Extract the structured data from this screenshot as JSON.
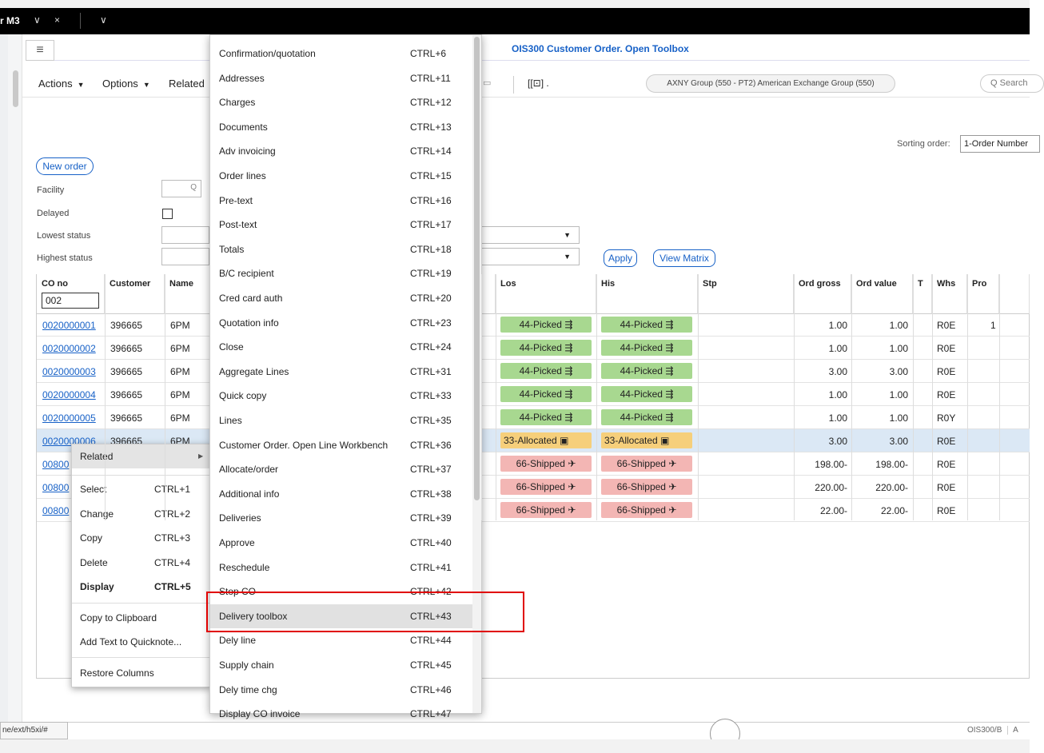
{
  "tab": {
    "title": "r M3",
    "chevron": "∨",
    "close": "×",
    "menu_chevron": "∨"
  },
  "header": {
    "page_title": "OIS300 Customer Order. Open Toolbox",
    "menu_icon": "≡"
  },
  "toolbar": {
    "actions": "Actions",
    "options": "Options",
    "related": "Related",
    "shortcut_glyph": "[[⊡] .",
    "group_chip": "AXNY Group (550 - PT2) American Exchange Group (550)",
    "search_placeholder": "Q  Search"
  },
  "sorting": {
    "label": "Sorting order:",
    "value": "1-Order Number"
  },
  "filters": {
    "new_order": "New order",
    "facility": "Facility",
    "delayed": "Delayed",
    "lowest_status": "Lowest status",
    "highest_status": "Highest status",
    "apply": "Apply",
    "view_matrix": "View Matrix",
    "dropdown_caret": "▼"
  },
  "table": {
    "headers": {
      "co_no": "CO no",
      "customer": "Customer",
      "name": "Name",
      "los": "Los",
      "his": "His",
      "stp": "Stp",
      "ord_gross": "Ord gross",
      "ord_value": "Ord value",
      "t": "T",
      "whs": "Whs",
      "pro": "Pro"
    },
    "co_filter": "002",
    "rows": [
      {
        "co": "0020000001",
        "customer": "396665",
        "name": "6PM",
        "los": "44-Picked",
        "his": "44-Picked",
        "gross": "1.00",
        "value": "1.00",
        "whs": "R0E",
        "pro": "1",
        "status": "green"
      },
      {
        "co": "0020000002",
        "customer": "396665",
        "name": "6PM",
        "los": "44-Picked",
        "his": "44-Picked",
        "gross": "1.00",
        "value": "1.00",
        "whs": "R0E",
        "pro": "",
        "status": "green"
      },
      {
        "co": "0020000003",
        "customer": "396665",
        "name": "6PM",
        "los": "44-Picked",
        "his": "44-Picked",
        "gross": "3.00",
        "value": "3.00",
        "whs": "R0E",
        "pro": "",
        "status": "green"
      },
      {
        "co": "0020000004",
        "customer": "396665",
        "name": "6PM",
        "los": "44-Picked",
        "his": "44-Picked",
        "gross": "1.00",
        "value": "1.00",
        "whs": "R0E",
        "pro": "",
        "status": "green"
      },
      {
        "co": "0020000005",
        "customer": "396665",
        "name": "6PM",
        "los": "44-Picked",
        "his": "44-Picked",
        "gross": "1.00",
        "value": "1.00",
        "whs": "R0Y",
        "pro": "",
        "status": "green"
      },
      {
        "co": "0020000006",
        "customer": "396665",
        "name": "6PM",
        "los": "33-Allocated",
        "his": "33-Allocated",
        "gross": "3.00",
        "value": "3.00",
        "whs": "R0E",
        "pro": "",
        "status": "amber"
      },
      {
        "co": "00800",
        "customer": "",
        "name": "",
        "los": "66-Shipped",
        "his": "66-Shipped",
        "gross": "198.00-",
        "value": "198.00-",
        "whs": "R0E",
        "pro": "",
        "status": "red"
      },
      {
        "co": "00800",
        "customer": "",
        "name": "",
        "los": "66-Shipped",
        "his": "66-Shipped",
        "gross": "220.00-",
        "value": "220.00-",
        "whs": "R0E",
        "pro": "",
        "status": "red"
      },
      {
        "co": "00800",
        "customer": "",
        "name": "",
        "los": "66-Shipped",
        "his": "66-Shipped",
        "gross": "22.00-",
        "value": "22.00-",
        "whs": "R0E",
        "pro": "",
        "status": "red"
      }
    ]
  },
  "context_menu": {
    "related": "Related",
    "arrow": "▶",
    "items": [
      {
        "label": "Select",
        "shortcut": "CTRL+1"
      },
      {
        "label": "Change",
        "shortcut": "CTRL+2"
      },
      {
        "label": "Copy",
        "shortcut": "CTRL+3"
      },
      {
        "label": "Delete",
        "shortcut": "CTRL+4"
      },
      {
        "label": "Display",
        "shortcut": "CTRL+5"
      }
    ],
    "copy_clipboard": "Copy to Clipboard",
    "add_quicknote": "Add Text to Quicknote...",
    "restore_columns": "Restore Columns"
  },
  "related_menu": [
    {
      "label": "Confirmation/quotation",
      "shortcut": "CTRL+6"
    },
    {
      "label": "Addresses",
      "shortcut": "CTRL+11"
    },
    {
      "label": "Charges",
      "shortcut": "CTRL+12"
    },
    {
      "label": "Documents",
      "shortcut": "CTRL+13"
    },
    {
      "label": "Adv invoicing",
      "shortcut": "CTRL+14"
    },
    {
      "label": "Order lines",
      "shortcut": "CTRL+15"
    },
    {
      "label": "Pre-text",
      "shortcut": "CTRL+16"
    },
    {
      "label": "Post-text",
      "shortcut": "CTRL+17"
    },
    {
      "label": "Totals",
      "shortcut": "CTRL+18"
    },
    {
      "label": "B/C recipient",
      "shortcut": "CTRL+19"
    },
    {
      "label": "Cred card auth",
      "shortcut": "CTRL+20"
    },
    {
      "label": "Quotation info",
      "shortcut": "CTRL+23"
    },
    {
      "label": "Close",
      "shortcut": "CTRL+24"
    },
    {
      "label": "Aggregate Lines",
      "shortcut": "CTRL+31"
    },
    {
      "label": "Quick copy",
      "shortcut": "CTRL+33"
    },
    {
      "label": "Lines",
      "shortcut": "CTRL+35"
    },
    {
      "label": "Customer Order. Open Line Workbench",
      "shortcut": "CTRL+36"
    },
    {
      "label": "Allocate/order",
      "shortcut": "CTRL+37"
    },
    {
      "label": "Additional info",
      "shortcut": "CTRL+38"
    },
    {
      "label": "Deliveries",
      "shortcut": "CTRL+39"
    },
    {
      "label": "Approve",
      "shortcut": "CTRL+40"
    },
    {
      "label": "Reschedule",
      "shortcut": "CTRL+41"
    },
    {
      "label": "Stop CO",
      "shortcut": "CTRL+42"
    },
    {
      "label": "Delivery toolbox",
      "shortcut": "CTRL+43"
    },
    {
      "label": "Dely line",
      "shortcut": "CTRL+44"
    },
    {
      "label": "Supply chain",
      "shortcut": "CTRL+45"
    },
    {
      "label": "Dely time chg",
      "shortcut": "CTRL+46"
    },
    {
      "label": "Display CO invoice",
      "shortcut": "CTRL+47"
    }
  ],
  "status_bar": {
    "url": "ne/ext/h5xi/#",
    "program": "OIS300/B",
    "extra": "A"
  }
}
